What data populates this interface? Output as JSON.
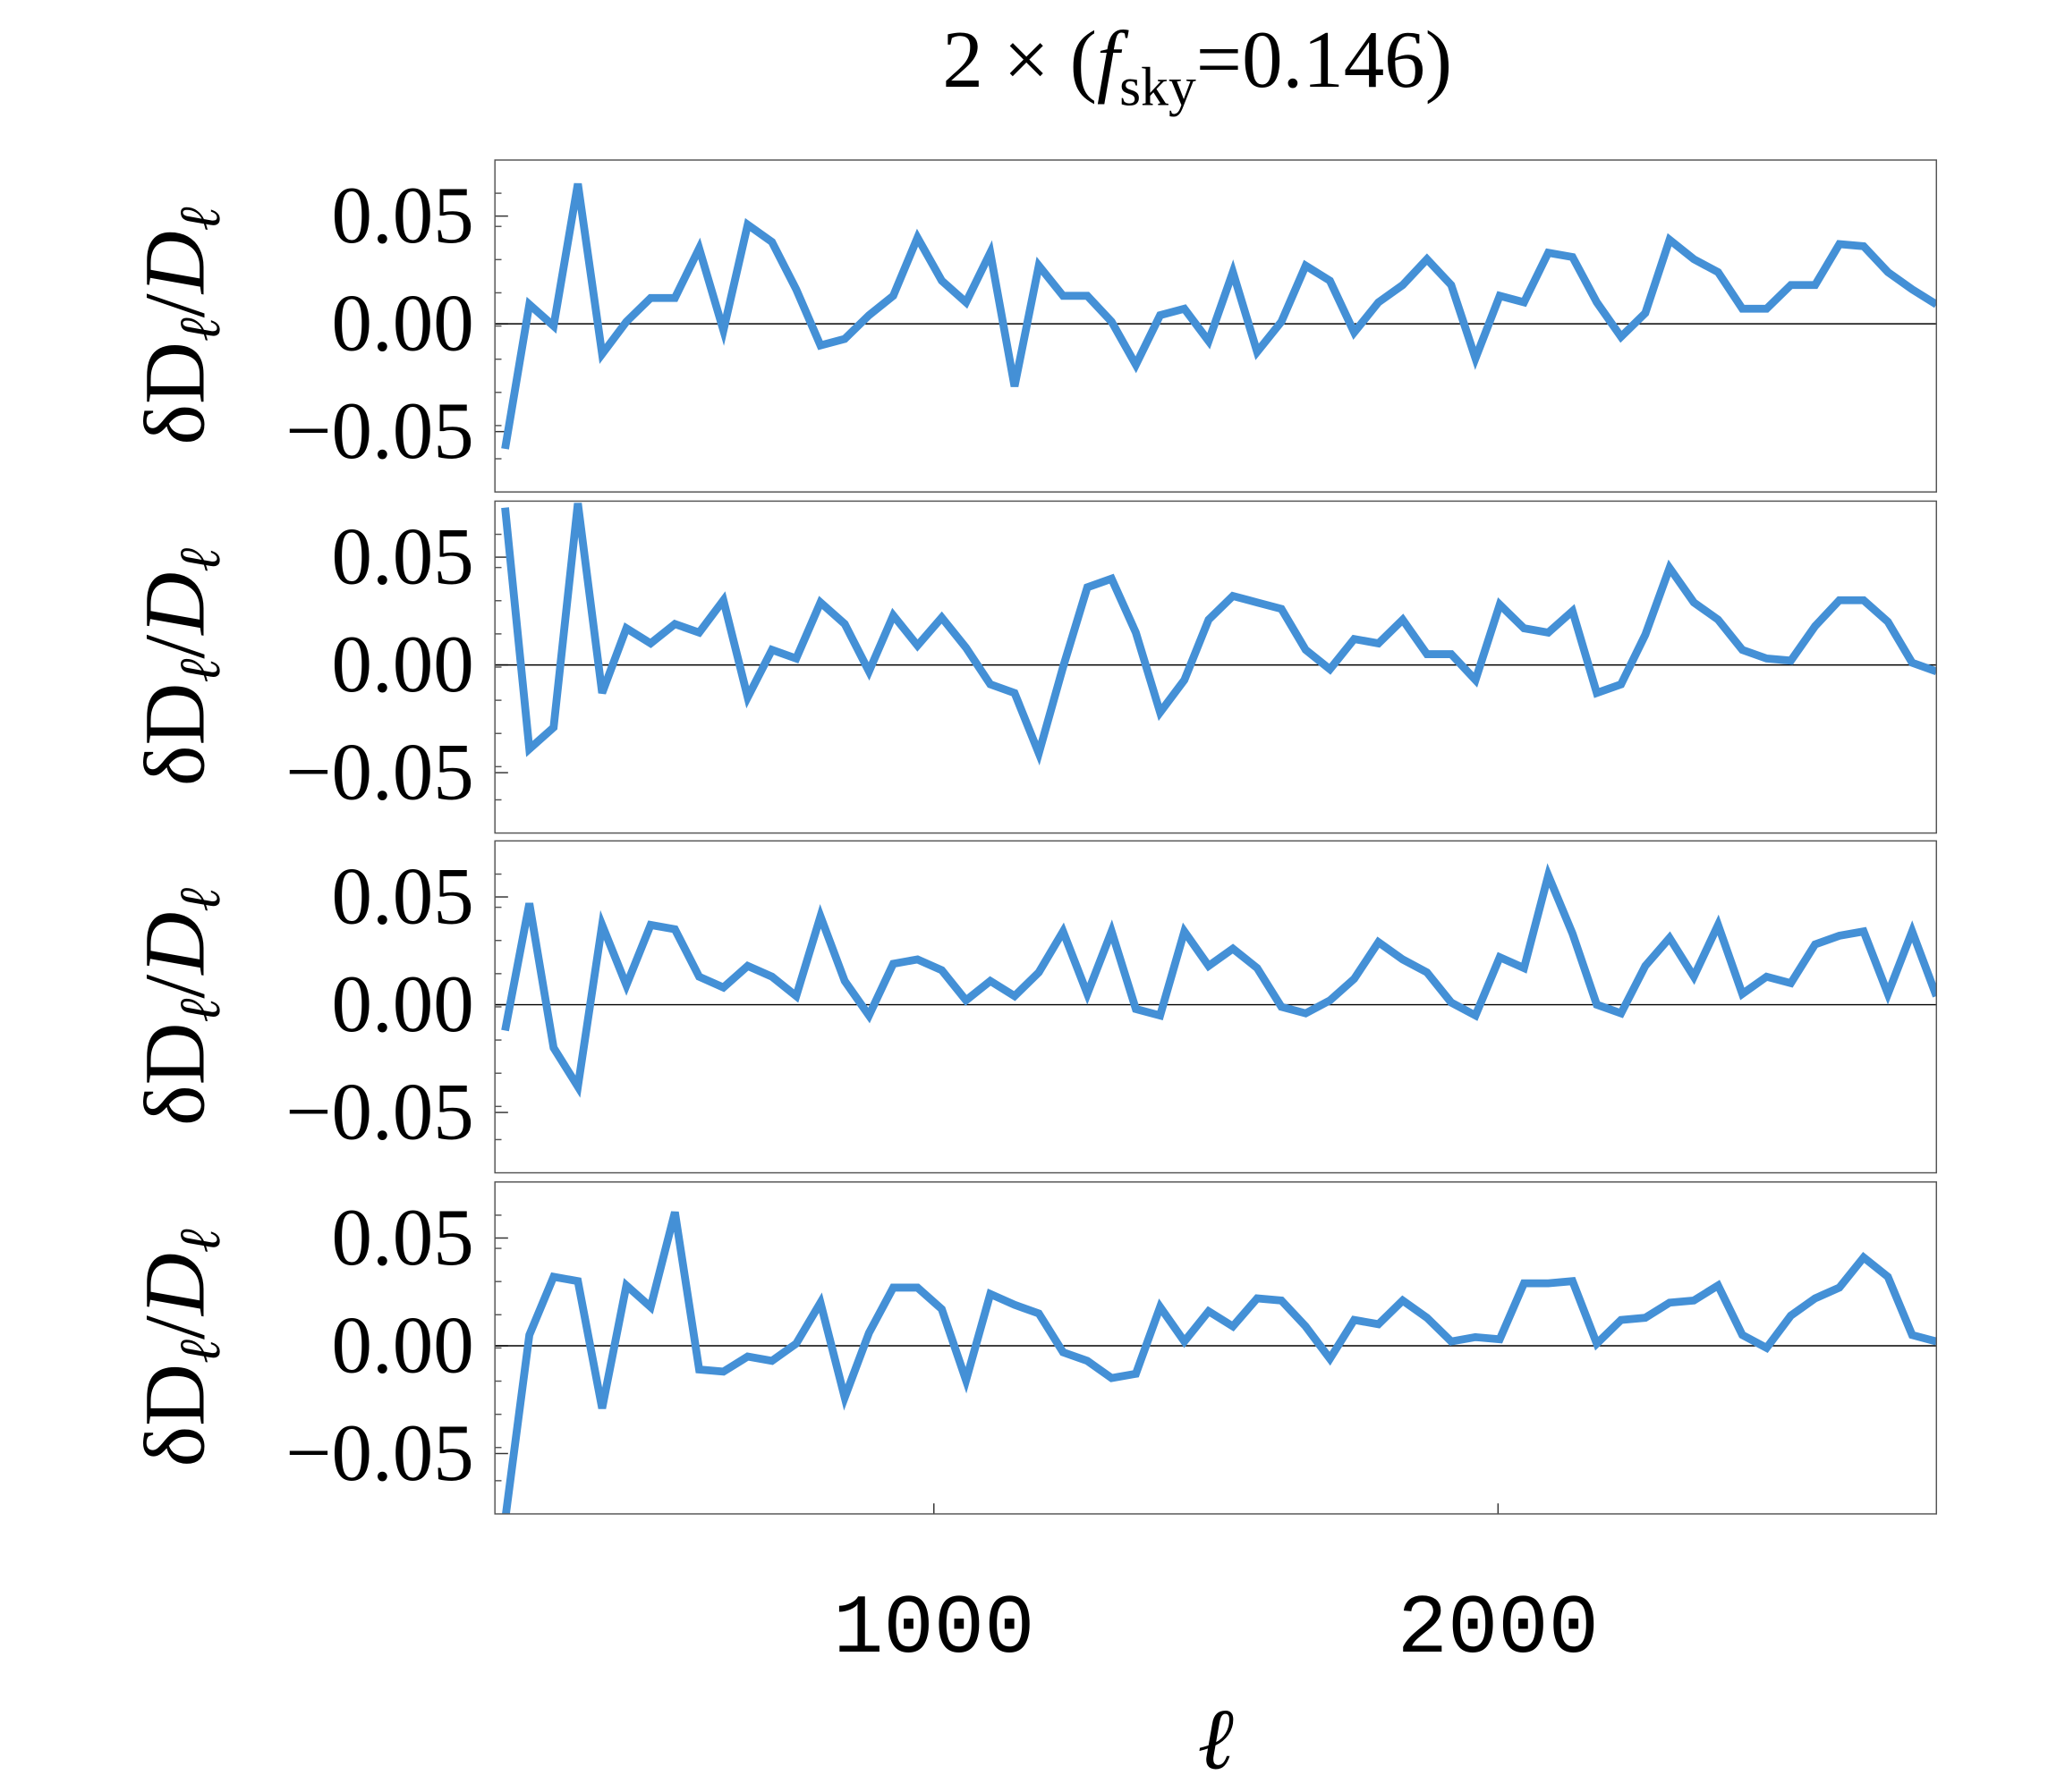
{
  "chart_data": [
    {
      "type": "line",
      "title": {
        "prefix": "2 × (",
        "symbol": "f",
        "subscript": "sky",
        "suffix": "=0.146)"
      },
      "ylabel": [
        "δD",
        "ℓ",
        "/",
        "D",
        "ℓ"
      ],
      "x": [
        240,
        283,
        326,
        369,
        412,
        455,
        498,
        541,
        584,
        627,
        670,
        713,
        756,
        799,
        842,
        885,
        928,
        971,
        1014,
        1057,
        1100,
        1143,
        1186,
        1229,
        1272,
        1315,
        1358,
        1401,
        1444,
        1487,
        1530,
        1573,
        1616,
        1659,
        1702,
        1745,
        1788,
        1831,
        1874,
        1917,
        1960,
        2003,
        2046,
        2089,
        2132,
        2175,
        2218,
        2261,
        2304,
        2347,
        2390,
        2433,
        2476,
        2519,
        2562,
        2605,
        2648,
        2691,
        2734,
        2777
      ],
      "series": [
        {
          "color": "#4490d6",
          "values": [
            -0.058,
            0.009,
            -0.001,
            0.065,
            -0.014,
            0.001,
            0.012,
            0.012,
            0.035,
            -0.003,
            0.046,
            0.038,
            0.016,
            -0.01,
            -0.007,
            0.004,
            0.013,
            0.04,
            0.02,
            0.01,
            0.033,
            -0.029,
            0.027,
            0.013,
            0.013,
            0.001,
            -0.019,
            0.004,
            0.007,
            -0.008,
            0.024,
            -0.013,
            0.001,
            0.027,
            0.02,
            -0.004,
            0.01,
            0.018,
            0.03,
            0.018,
            -0.016,
            0.013,
            0.01,
            0.033,
            0.031,
            0.01,
            -0.006,
            0.005,
            0.039,
            0.03,
            0.024,
            0.007,
            0.007,
            0.018,
            0.018,
            0.037,
            0.036,
            0.024,
            0.016,
            0.009
          ]
        }
      ],
      "xlim": [
        222,
        2777
      ],
      "ylim": [
        -0.078,
        0.076
      ],
      "yticks": [
        {
          "value": -0.05,
          "label": "−0.05"
        },
        {
          "value": 0,
          "label": "0.00"
        },
        {
          "value": 0.05,
          "label": "0.05"
        }
      ],
      "zero_line": true
    },
    {
      "type": "line",
      "ylabel": [
        "δD",
        "ℓ",
        "/",
        "D",
        "ℓ"
      ],
      "x": [
        240,
        283,
        326,
        369,
        412,
        455,
        498,
        541,
        584,
        627,
        670,
        713,
        756,
        799,
        842,
        885,
        928,
        971,
        1014,
        1057,
        1100,
        1143,
        1186,
        1229,
        1272,
        1315,
        1358,
        1401,
        1444,
        1487,
        1530,
        1573,
        1616,
        1659,
        1702,
        1745,
        1788,
        1831,
        1874,
        1917,
        1960,
        2003,
        2046,
        2089,
        2132,
        2175,
        2218,
        2261,
        2304,
        2347,
        2390,
        2433,
        2476,
        2519,
        2562,
        2605,
        2648,
        2691,
        2734,
        2777
      ],
      "series": [
        {
          "color": "#4490d6",
          "values": [
            0.073,
            -0.039,
            -0.029,
            0.075,
            -0.013,
            0.017,
            0.01,
            0.019,
            0.015,
            0.03,
            -0.015,
            0.007,
            0.003,
            0.029,
            0.019,
            -0.003,
            0.023,
            0.009,
            0.022,
            0.008,
            -0.009,
            -0.013,
            -0.041,
            -0.001,
            0.036,
            0.04,
            0.015,
            -0.022,
            -0.007,
            0.021,
            0.032,
            0.029,
            0.026,
            0.007,
            -0.002,
            0.012,
            0.01,
            0.021,
            0.005,
            0.005,
            -0.007,
            0.028,
            0.017,
            0.015,
            0.025,
            -0.013,
            -0.009,
            0.014,
            0.045,
            0.029,
            0.021,
            0.007,
            0.003,
            0.002,
            0.018,
            0.03,
            0.03,
            0.02,
            0.001,
            -0.003
          ]
        }
      ],
      "xlim": [
        222,
        2777
      ],
      "ylim": [
        -0.078,
        0.076
      ],
      "yticks": [
        {
          "value": -0.05,
          "label": "−0.05"
        },
        {
          "value": 0,
          "label": "0.00"
        },
        {
          "value": 0.05,
          "label": "0.05"
        }
      ],
      "zero_line": true
    },
    {
      "type": "line",
      "ylabel": [
        "δD",
        "ℓ",
        "/",
        "D",
        "ℓ"
      ],
      "x": [
        240,
        283,
        326,
        369,
        412,
        455,
        498,
        541,
        584,
        627,
        670,
        713,
        756,
        799,
        842,
        885,
        928,
        971,
        1014,
        1057,
        1100,
        1143,
        1186,
        1229,
        1272,
        1315,
        1358,
        1401,
        1444,
        1487,
        1530,
        1573,
        1616,
        1659,
        1702,
        1745,
        1788,
        1831,
        1874,
        1917,
        1960,
        2003,
        2046,
        2089,
        2132,
        2175,
        2218,
        2261,
        2304,
        2347,
        2390,
        2433,
        2476,
        2519,
        2562,
        2605,
        2648,
        2691,
        2734,
        2777
      ],
      "series": [
        {
          "color": "#4490d6",
          "values": [
            -0.012,
            0.047,
            -0.02,
            -0.038,
            0.037,
            0.009,
            0.037,
            0.035,
            0.013,
            0.008,
            0.018,
            0.013,
            0.004,
            0.041,
            0.011,
            -0.005,
            0.019,
            0.021,
            0.016,
            0.002,
            0.011,
            0.004,
            0.015,
            0.034,
            0.005,
            0.034,
            -0.002,
            -0.005,
            0.034,
            0.018,
            0.026,
            0.017,
            -0.001,
            -0.004,
            0.002,
            0.012,
            0.029,
            0.021,
            0.015,
            0.001,
            -0.005,
            0.022,
            0.017,
            0.06,
            0.033,
            0.0,
            -0.004,
            0.018,
            0.031,
            0.013,
            0.037,
            0.005,
            0.013,
            0.01,
            0.028,
            0.032,
            0.034,
            0.005,
            0.034,
            0.004
          ]
        }
      ],
      "xlim": [
        222,
        2777
      ],
      "ylim": [
        -0.078,
        0.076
      ],
      "yticks": [
        {
          "value": -0.05,
          "label": "−0.05"
        },
        {
          "value": 0,
          "label": "0.00"
        },
        {
          "value": 0.05,
          "label": "0.05"
        }
      ],
      "zero_line": true
    },
    {
      "type": "line",
      "ylabel": [
        "δD",
        "ℓ",
        "/",
        "D",
        "ℓ"
      ],
      "xlabel": "ℓ",
      "x": [
        240,
        283,
        326,
        369,
        412,
        455,
        498,
        541,
        584,
        627,
        670,
        713,
        756,
        799,
        842,
        885,
        928,
        971,
        1014,
        1057,
        1100,
        1143,
        1186,
        1229,
        1272,
        1315,
        1358,
        1401,
        1444,
        1487,
        1530,
        1573,
        1616,
        1659,
        1702,
        1745,
        1788,
        1831,
        1874,
        1917,
        1960,
        2003,
        2046,
        2089,
        2132,
        2175,
        2218,
        2261,
        2304,
        2347,
        2390,
        2433,
        2476,
        2519,
        2562,
        2605,
        2648,
        2691,
        2734,
        2777
      ],
      "series": [
        {
          "color": "#4490d6",
          "values": [
            -0.081,
            0.005,
            0.032,
            0.03,
            -0.029,
            0.028,
            0.018,
            0.062,
            -0.011,
            -0.012,
            -0.005,
            -0.007,
            0.001,
            0.02,
            -0.024,
            0.006,
            0.027,
            0.027,
            0.017,
            -0.016,
            0.024,
            0.019,
            0.015,
            -0.003,
            -0.007,
            -0.015,
            -0.013,
            0.018,
            0.002,
            0.016,
            0.009,
            0.022,
            0.021,
            0.009,
            -0.006,
            0.012,
            0.01,
            0.021,
            0.013,
            0.002,
            0.004,
            0.003,
            0.029,
            0.029,
            0.03,
            0.001,
            0.012,
            0.013,
            0.02,
            0.021,
            0.028,
            0.005,
            -0.001,
            0.014,
            0.022,
            0.027,
            0.041,
            0.032,
            0.005,
            0.002
          ]
        }
      ],
      "xlim": [
        222,
        2777
      ],
      "ylim": [
        -0.078,
        0.076
      ],
      "xticks": [
        1000,
        2000
      ],
      "yticks": [
        {
          "value": -0.05,
          "label": "−0.05"
        },
        {
          "value": 0,
          "label": "0.00"
        },
        {
          "value": 0.05,
          "label": "0.05"
        }
      ],
      "zero_line": true
    }
  ]
}
